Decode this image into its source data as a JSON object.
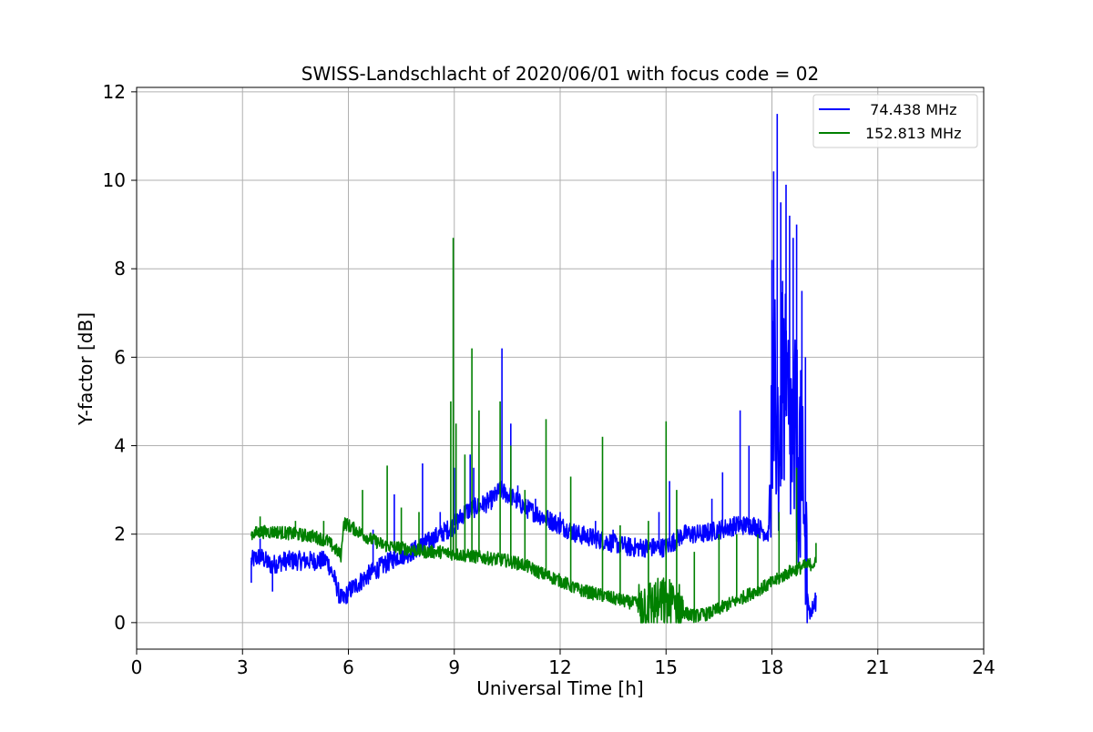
{
  "chart_data": {
    "type": "line",
    "title": "SWISS-Landschlacht of 2020/06/01 with focus code = 02",
    "xlabel": "Universal Time [h]",
    "ylabel": "Y-factor [dB]",
    "xlim": [
      0,
      24
    ],
    "ylim": [
      -0.6,
      12.1
    ],
    "xticks": [
      "0",
      "3",
      "6",
      "9",
      "12",
      "15",
      "18",
      "21",
      "24"
    ],
    "yticks": [
      "0",
      "2",
      "4",
      "6",
      "8",
      "10",
      "12"
    ],
    "grid": true,
    "legend_position": "top-right",
    "series": [
      {
        "name": "  74.438 MHz",
        "color": "#0000ff",
        "x": [
          3.25,
          3.5,
          3.8,
          4.2,
          4.6,
          5.0,
          5.4,
          5.6,
          5.75,
          5.85,
          6.0,
          6.3,
          6.6,
          7.0,
          7.4,
          7.8,
          8.2,
          8.6,
          9.0,
          9.3,
          9.6,
          9.9,
          10.1,
          10.3,
          10.5,
          10.7,
          11.0,
          11.5,
          12.0,
          12.5,
          13.0,
          13.5,
          14.0,
          14.5,
          15.0,
          15.5,
          16.0,
          16.5,
          17.0,
          17.5,
          17.9,
          18.0,
          18.1,
          18.2,
          18.3,
          18.4,
          18.5,
          18.6,
          18.7,
          18.8,
          18.9,
          19.0,
          19.05,
          19.1,
          19.2,
          19.25
        ],
        "y": [
          1.4,
          1.5,
          1.3,
          1.4,
          1.4,
          1.4,
          1.4,
          1.0,
          0.6,
          0.5,
          0.7,
          0.9,
          1.1,
          1.3,
          1.5,
          1.6,
          1.8,
          2.0,
          2.2,
          2.5,
          2.6,
          2.7,
          2.8,
          3.0,
          2.9,
          2.8,
          2.6,
          2.4,
          2.2,
          2.0,
          1.9,
          1.8,
          1.7,
          1.7,
          1.7,
          2.0,
          2.0,
          2.1,
          2.2,
          2.2,
          2.0,
          4.5,
          5.0,
          4.0,
          5.5,
          4.8,
          4.5,
          3.8,
          4.0,
          3.5,
          2.0,
          1.0,
          0.3,
          0.2,
          0.4,
          0.5
        ],
        "spikes": [
          [
            3.25,
            0.9
          ],
          [
            3.5,
            1.9
          ],
          [
            3.85,
            0.7
          ],
          [
            6.7,
            2.1
          ],
          [
            7.3,
            2.9
          ],
          [
            8.1,
            3.6
          ],
          [
            8.6,
            2.5
          ],
          [
            9.0,
            3.5
          ],
          [
            9.45,
            3.8
          ],
          [
            9.55,
            3.5
          ],
          [
            10.35,
            6.2
          ],
          [
            10.6,
            4.5
          ],
          [
            10.8,
            3.1
          ],
          [
            11.3,
            2.8
          ],
          [
            12.0,
            2.5
          ],
          [
            13.0,
            2.3
          ],
          [
            13.5,
            2.1
          ],
          [
            14.8,
            2.5
          ],
          [
            15.1,
            3.2
          ],
          [
            16.3,
            2.8
          ],
          [
            16.6,
            3.4
          ],
          [
            17.1,
            4.8
          ],
          [
            17.35,
            4.0
          ],
          [
            18.0,
            8.2
          ],
          [
            18.05,
            10.2
          ],
          [
            18.15,
            11.5
          ],
          [
            18.25,
            9.5
          ],
          [
            18.4,
            9.9
          ],
          [
            18.5,
            9.2
          ],
          [
            18.6,
            8.7
          ],
          [
            18.7,
            9.0
          ],
          [
            18.85,
            7.5
          ],
          [
            18.95,
            6.0
          ]
        ]
      },
      {
        "name": "152.813 MHz",
        "color": "#008000",
        "x": [
          3.25,
          3.5,
          4.0,
          4.5,
          5.0,
          5.4,
          5.7,
          5.8,
          5.85,
          5.9,
          6.2,
          6.6,
          7.0,
          7.4,
          7.8,
          8.2,
          8.6,
          9.0,
          9.5,
          10.0,
          10.5,
          11.0,
          11.5,
          12.0,
          12.5,
          13.0,
          13.5,
          14.0,
          14.5,
          15.0,
          15.3,
          15.6,
          15.8,
          16.2,
          16.6,
          17.0,
          17.5,
          18.0,
          18.5,
          19.0,
          19.25
        ],
        "y": [
          2.0,
          2.05,
          2.05,
          2.0,
          1.95,
          1.85,
          1.6,
          1.5,
          2.2,
          2.25,
          2.1,
          1.9,
          1.75,
          1.7,
          1.65,
          1.6,
          1.6,
          1.55,
          1.5,
          1.45,
          1.4,
          1.3,
          1.1,
          0.95,
          0.75,
          0.65,
          0.55,
          0.45,
          0.4,
          0.45,
          0.35,
          0.2,
          0.15,
          0.2,
          0.35,
          0.5,
          0.7,
          0.9,
          1.15,
          1.3,
          1.35
        ],
        "spikes": [
          [
            3.5,
            2.4
          ],
          [
            4.5,
            2.3
          ],
          [
            5.3,
            2.3
          ],
          [
            6.4,
            3.0
          ],
          [
            7.1,
            3.55
          ],
          [
            7.5,
            2.6
          ],
          [
            8.0,
            2.5
          ],
          [
            8.9,
            5.0
          ],
          [
            8.97,
            8.7
          ],
          [
            9.05,
            4.5
          ],
          [
            9.3,
            3.8
          ],
          [
            9.5,
            6.2
          ],
          [
            9.7,
            4.8
          ],
          [
            10.3,
            5.0
          ],
          [
            10.6,
            4.0
          ],
          [
            11.0,
            3.0
          ],
          [
            11.6,
            4.6
          ],
          [
            12.3,
            3.3
          ],
          [
            13.2,
            4.2
          ],
          [
            13.7,
            2.2
          ],
          [
            14.5,
            2.3
          ],
          [
            15.0,
            4.55
          ],
          [
            15.3,
            3.0
          ],
          [
            15.8,
            1.6
          ],
          [
            16.5,
            2.0
          ],
          [
            17.0,
            2.0
          ],
          [
            17.6,
            2.0
          ],
          [
            18.2,
            2.5
          ],
          [
            18.7,
            3.5
          ],
          [
            19.25,
            1.8
          ]
        ]
      }
    ]
  }
}
